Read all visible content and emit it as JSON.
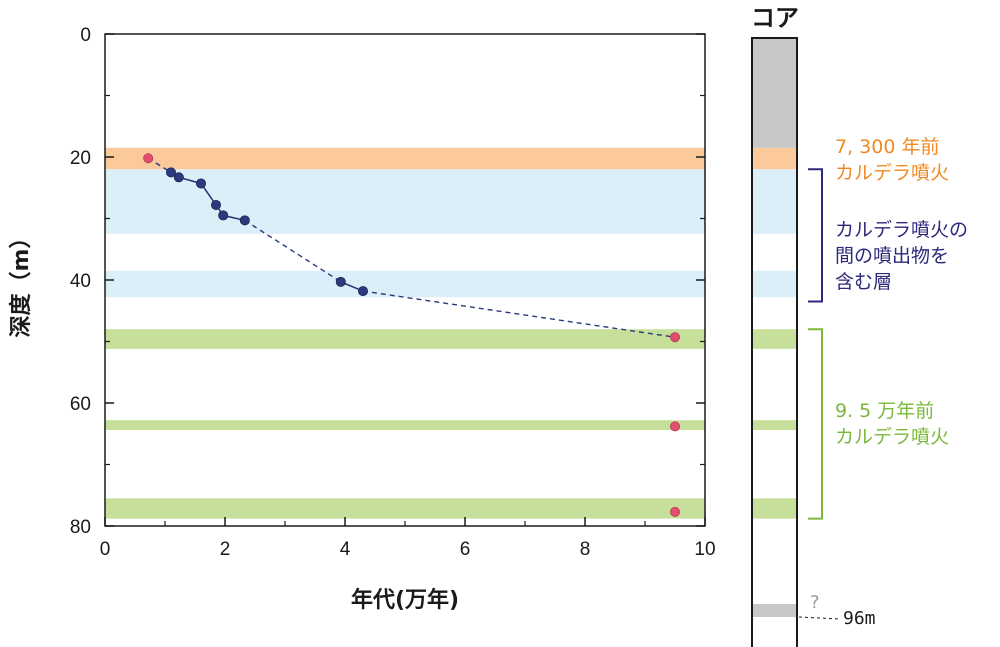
{
  "chart_data": {
    "type": "scatter",
    "xlabel": "年代(万年)",
    "ylabel": "深度（m）",
    "xlim": [
      0,
      10
    ],
    "ylim": [
      0,
      80
    ],
    "y_inverted": true,
    "x_ticks": [
      0,
      2,
      4,
      6,
      8,
      10
    ],
    "y_ticks": [
      0,
      20,
      40,
      60,
      80
    ],
    "grid": false,
    "bands": [
      {
        "name": "7,300年前カルデラ噴火",
        "from": 18.5,
        "to": 22.0,
        "color": "#fbc99a"
      },
      {
        "name": "カルデラ噴火の間の噴出物を含む層",
        "from": 22.0,
        "to": 32.5,
        "color": "#dceef8"
      },
      {
        "name": "カルデラ噴火の間の噴出物を含む層",
        "from": 38.5,
        "to": 42.8,
        "color": "#dceef8"
      },
      {
        "name": "9.5万年前カルデラ噴火",
        "from": 48.0,
        "to": 51.2,
        "color": "#c6df9a"
      },
      {
        "name": "9.5万年前カルデラ噴火",
        "from": 62.8,
        "to": 64.4,
        "color": "#c6df9a"
      },
      {
        "name": "9.5万年前カルデラ噴火",
        "from": 75.5,
        "to": 78.8,
        "color": "#c6df9a"
      }
    ],
    "series": [
      {
        "color": "#2b3a7c",
        "points": [
          [
            1.1,
            22.5
          ],
          [
            1.23,
            23.3
          ],
          [
            1.6,
            24.3
          ],
          [
            1.85,
            27.8
          ],
          [
            1.97,
            29.5
          ],
          [
            2.33,
            30.3
          ],
          [
            3.93,
            40.3
          ],
          [
            4.3,
            41.8
          ]
        ]
      },
      {
        "color": "#e0506e",
        "points": [
          [
            0.72,
            20.2
          ],
          [
            9.5,
            49.3
          ],
          [
            9.5,
            63.8
          ],
          [
            9.5,
            77.7
          ]
        ]
      }
    ],
    "connectors": {
      "solid": [
        [
          1.1,
          22.5
        ],
        [
          1.23,
          23.3
        ],
        [
          1.6,
          24.3
        ],
        [
          1.85,
          27.8
        ],
        [
          1.97,
          29.5
        ],
        [
          2.33,
          30.3
        ]
      ],
      "dashed_segments": [
        [
          [
            0.72,
            20.2
          ],
          [
            1.1,
            22.5
          ]
        ],
        [
          [
            2.33,
            30.3
          ],
          [
            3.93,
            40.3
          ]
        ],
        [
          [
            4.3,
            41.8
          ],
          [
            9.5,
            49.3
          ]
        ]
      ],
      "solid_segments": [
        [
          [
            3.93,
            40.3
          ],
          [
            4.3,
            41.8
          ]
        ]
      ]
    }
  },
  "core": {
    "title": "コア",
    "depth_label": "96m",
    "question_mark": "?",
    "annotations": {
      "orange": {
        "line1": "7, 300 年前",
        "line2": "カルデラ噴火",
        "color": "#f08a24"
      },
      "blue": {
        "line1": "カルデラ噴火の",
        "line2": "間の噴出物を",
        "line3": "含む層",
        "color": "#2e2a7a"
      },
      "green": {
        "line1": "9. 5 万年前",
        "line2": "カルデラ噴火",
        "color": "#7cb83a"
      }
    },
    "gray_color": "#c8c8c8"
  }
}
